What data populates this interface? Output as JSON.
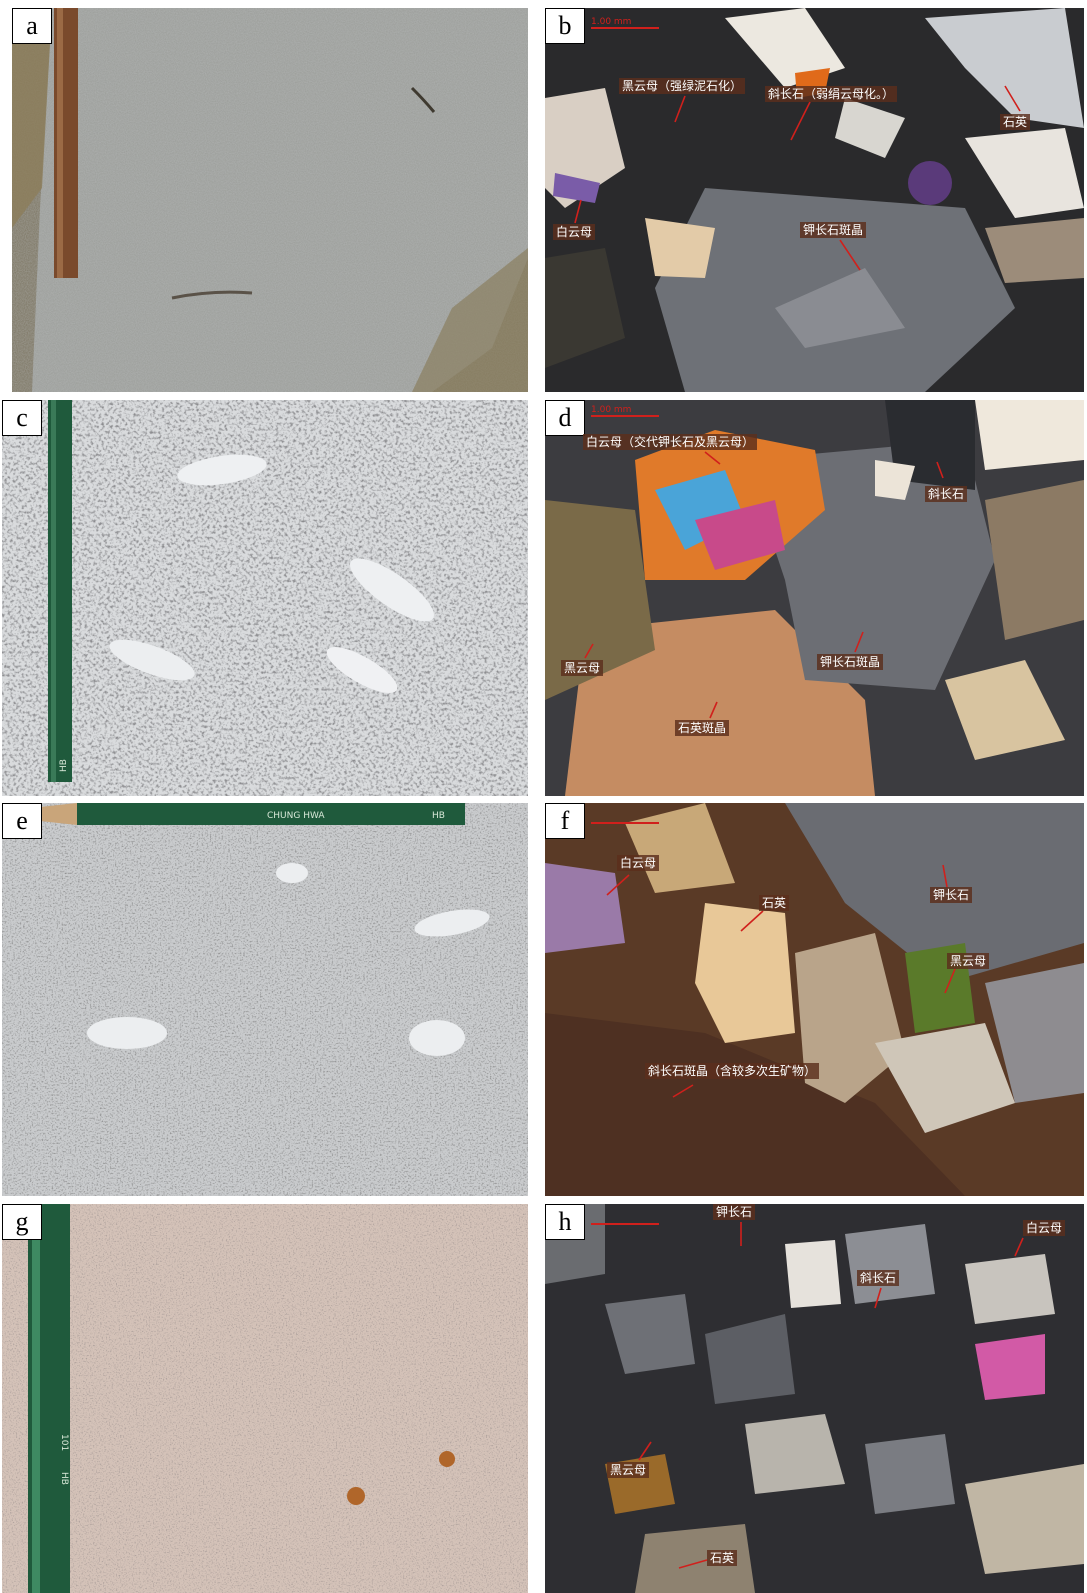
{
  "panels": [
    {
      "id": "a",
      "label": "a"
    },
    {
      "id": "b",
      "label": "b",
      "scale_text": "1.00 mm",
      "annotations": [
        "黑云母（强绿泥石化）",
        "斜长石（弱绢云母化。）",
        "石英",
        "白云母",
        "钾长石斑晶"
      ]
    },
    {
      "id": "c",
      "label": "c",
      "pencil_text": "HB"
    },
    {
      "id": "d",
      "label": "d",
      "scale_text": "1.00 mm",
      "annotations": [
        "白云母（交代钾长石及黑云母）",
        "斜长石",
        "黑云母",
        "钾长石斑晶",
        "石英斑晶"
      ]
    },
    {
      "id": "e",
      "label": "e",
      "pencil_text": "CHUNG HWA",
      "pencil_grade": "HB"
    },
    {
      "id": "f",
      "label": "f",
      "annotations": [
        "白云母",
        "石英",
        "钾长石",
        "黑云母",
        "斜长石斑晶（含较多次生矿物）"
      ]
    },
    {
      "id": "g",
      "label": "g",
      "pencil_text": "101",
      "pencil_grade": "HB"
    },
    {
      "id": "h",
      "label": "h",
      "annotations": [
        "钾长石",
        "白云母",
        "斜长石",
        "黑云母",
        "石英"
      ]
    }
  ],
  "colors": {
    "annotation_bg": "#5c2e1c",
    "arrow": "#d0201c",
    "pencil": "#1f5a3c"
  }
}
